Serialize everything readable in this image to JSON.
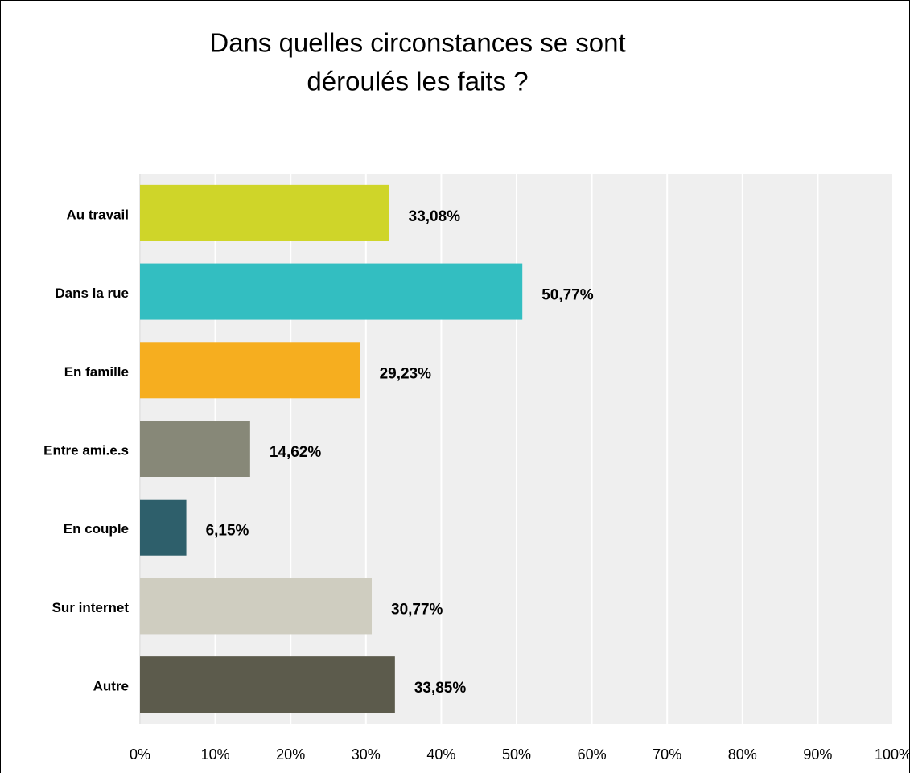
{
  "chart_data": {
    "type": "hbar",
    "title": [
      "Dans quelles circonstances se sont",
      "déroulés les faits ?"
    ],
    "categories": [
      "Au travail",
      "Dans la rue",
      "En famille",
      "Entre ami.e.s",
      "En couple",
      "Sur internet",
      "Autre"
    ],
    "values": [
      33.08,
      50.77,
      29.23,
      14.62,
      6.15,
      30.77,
      33.85
    ],
    "value_labels": [
      "33,08%",
      "50,77%",
      "29,23%",
      "14,62%",
      "6,15%",
      "30,77%",
      "33,85%"
    ],
    "colors": [
      "#cfd529",
      "#33bec1",
      "#f6ae1f",
      "#878878",
      "#2e5f6b",
      "#cfcdc0",
      "#5c5b4c"
    ],
    "xlim": [
      0,
      100
    ],
    "xticks": [
      {
        "value": 0,
        "label": "0%"
      },
      {
        "value": 10,
        "label": "10%"
      },
      {
        "value": 20,
        "label": "20%"
      },
      {
        "value": 30,
        "label": "30%"
      },
      {
        "value": 40,
        "label": "40%"
      },
      {
        "value": 50,
        "label": "50%"
      },
      {
        "value": 60,
        "label": "60%"
      },
      {
        "value": 70,
        "label": "70%"
      },
      {
        "value": 80,
        "label": "80%"
      },
      {
        "value": 90,
        "label": "90%"
      },
      {
        "value": 100,
        "label": "100%"
      }
    ],
    "grid": true
  }
}
